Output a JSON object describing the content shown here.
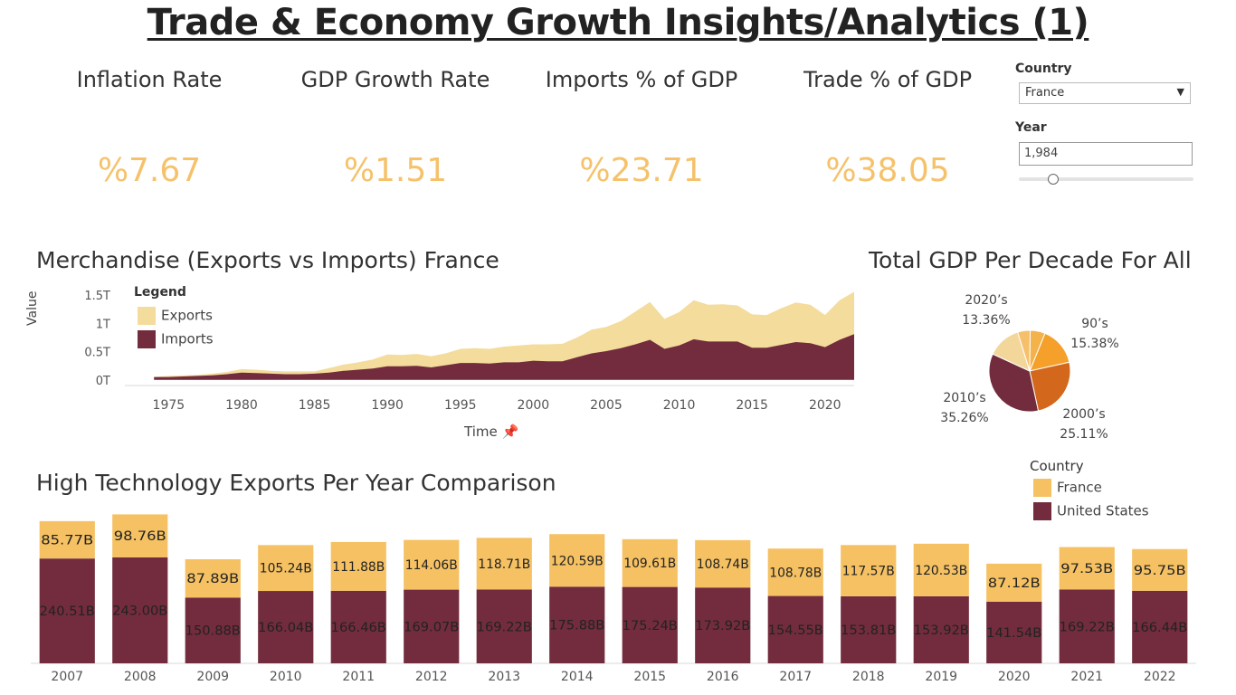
{
  "page": {
    "title": "Trade & Economy Growth Insights/Analytics (1)"
  },
  "kpis": [
    {
      "label": "Inflation Rate",
      "value": "%7.67"
    },
    {
      "label": "GDP Growth Rate",
      "value": "%1.51"
    },
    {
      "label": "Imports % of GDP",
      "value": "%23.71"
    },
    {
      "label": "Trade % of GDP",
      "value": "%38.05"
    }
  ],
  "filters": {
    "country_label": "Country",
    "country_value": "France",
    "year_label": "Year",
    "year_value": "1,984",
    "year_slider_fraction": 0.2
  },
  "colors": {
    "exports": "#f3dc9c",
    "imports": "#722c3d",
    "france": "#f5c163",
    "united_states": "#722c3d",
    "kpi": "#f5c26b"
  },
  "legend_merch": {
    "title": "Legend",
    "items": [
      "Exports",
      "Imports"
    ]
  },
  "legend_country": {
    "title": "Country",
    "items": [
      "France",
      "United States"
    ]
  },
  "chart_data": [
    {
      "type": "area",
      "title": "Merchandise (Exports vs Imports) France",
      "xlabel": "Time",
      "ylabel": "Value",
      "xlim": [
        1972,
        2022
      ],
      "ylim": [
        -0.1,
        1.6
      ],
      "x_ticks": [
        1975,
        1980,
        1985,
        1990,
        1995,
        2000,
        2005,
        2010,
        2015,
        2020
      ],
      "y_ticks": [
        {
          "value": 0,
          "label": "0T"
        },
        {
          "value": 0.5,
          "label": "0.5T"
        },
        {
          "value": 1,
          "label": "1T"
        },
        {
          "value": 1.5,
          "label": "1.5T"
        }
      ],
      "x": [
        1974,
        1975,
        1976,
        1977,
        1978,
        1979,
        1980,
        1981,
        1982,
        1983,
        1984,
        1985,
        1986,
        1987,
        1988,
        1989,
        1990,
        1991,
        1992,
        1993,
        1994,
        1995,
        1996,
        1997,
        1998,
        1999,
        2000,
        2001,
        2002,
        2003,
        2004,
        2005,
        2006,
        2007,
        2008,
        2009,
        2010,
        2011,
        2012,
        2013,
        2014,
        2015,
        2016,
        2017,
        2018,
        2019,
        2020,
        2021,
        2022
      ],
      "series": [
        {
          "name": "Imports",
          "values": [
            0.05,
            0.05,
            0.06,
            0.07,
            0.08,
            0.1,
            0.13,
            0.12,
            0.11,
            0.1,
            0.1,
            0.11,
            0.13,
            0.16,
            0.18,
            0.2,
            0.24,
            0.24,
            0.25,
            0.22,
            0.26,
            0.3,
            0.3,
            0.29,
            0.31,
            0.31,
            0.34,
            0.33,
            0.33,
            0.4,
            0.47,
            0.51,
            0.56,
            0.63,
            0.71,
            0.55,
            0.61,
            0.72,
            0.68,
            0.68,
            0.68,
            0.57,
            0.57,
            0.62,
            0.67,
            0.65,
            0.58,
            0.71,
            0.81
          ]
        },
        {
          "name": "Exports",
          "values": [
            0.05,
            0.07,
            0.08,
            0.09,
            0.11,
            0.14,
            0.19,
            0.18,
            0.16,
            0.15,
            0.15,
            0.15,
            0.21,
            0.27,
            0.31,
            0.36,
            0.45,
            0.44,
            0.46,
            0.42,
            0.47,
            0.55,
            0.56,
            0.55,
            0.59,
            0.61,
            0.63,
            0.63,
            0.64,
            0.75,
            0.89,
            0.94,
            1.04,
            1.21,
            1.38,
            1.08,
            1.2,
            1.41,
            1.33,
            1.34,
            1.32,
            1.16,
            1.15,
            1.27,
            1.37,
            1.33,
            1.15,
            1.41,
            1.56
          ]
        }
      ]
    },
    {
      "type": "pie",
      "title": "Total GDP Per Decade For All",
      "slices": [
        {
          "label": "90’s",
          "percent": "15.38%",
          "value": 15.38,
          "color": "#f5a02a"
        },
        {
          "label": "2000’s",
          "percent": "25.11%",
          "value": 25.11,
          "color": "#d3671c"
        },
        {
          "label": "2010’s",
          "percent": "35.26%",
          "value": 35.26,
          "color": "#722c3d"
        },
        {
          "label": "2020’s",
          "percent": "13.36%",
          "value": 13.36,
          "color": "#f3d79a"
        },
        {
          "label": "",
          "percent": "",
          "value": 5.0,
          "color": "#f6c06b"
        },
        {
          "label": "",
          "percent": "",
          "value": 5.89,
          "color": "#f3b24a"
        }
      ]
    },
    {
      "type": "bar",
      "stacked": true,
      "title": "High Technology Exports Per Year Comparison",
      "categories": [
        "2007",
        "2008",
        "2009",
        "2010",
        "2011",
        "2012",
        "2013",
        "2014",
        "2015",
        "2016",
        "2017",
        "2018",
        "2019",
        "2020",
        "2021",
        "2022"
      ],
      "series": [
        {
          "name": "United States",
          "values": [
            240.51,
            243.0,
            150.88,
            166.04,
            166.46,
            169.07,
            169.22,
            175.88,
            175.24,
            173.92,
            154.55,
            153.81,
            153.92,
            141.54,
            169.22,
            166.44
          ],
          "labels": [
            "240.51B",
            "243.00B",
            "150.88B",
            "166.04B",
            "166.46B",
            "169.07B",
            "169.22B",
            "175.88B",
            "175.24B",
            "173.92B",
            "154.55B",
            "153.81B",
            "153.92B",
            "141.54B",
            "169.22B",
            "166.44B"
          ]
        },
        {
          "name": "France",
          "values": [
            85.77,
            98.76,
            87.89,
            105.24,
            111.88,
            114.06,
            118.71,
            120.59,
            109.61,
            108.74,
            108.78,
            117.57,
            120.53,
            87.12,
            97.53,
            95.75
          ],
          "labels": [
            "85.77B",
            "98.76B",
            "87.89B",
            "105.24B",
            "111.88B",
            "114.06B",
            "118.71B",
            "120.59B",
            "109.61B",
            "108.74B",
            "108.78B",
            "117.57B",
            "120.53B",
            "87.12B",
            "97.53B",
            "95.75B"
          ]
        }
      ],
      "ylim": [
        0,
        380
      ]
    }
  ]
}
